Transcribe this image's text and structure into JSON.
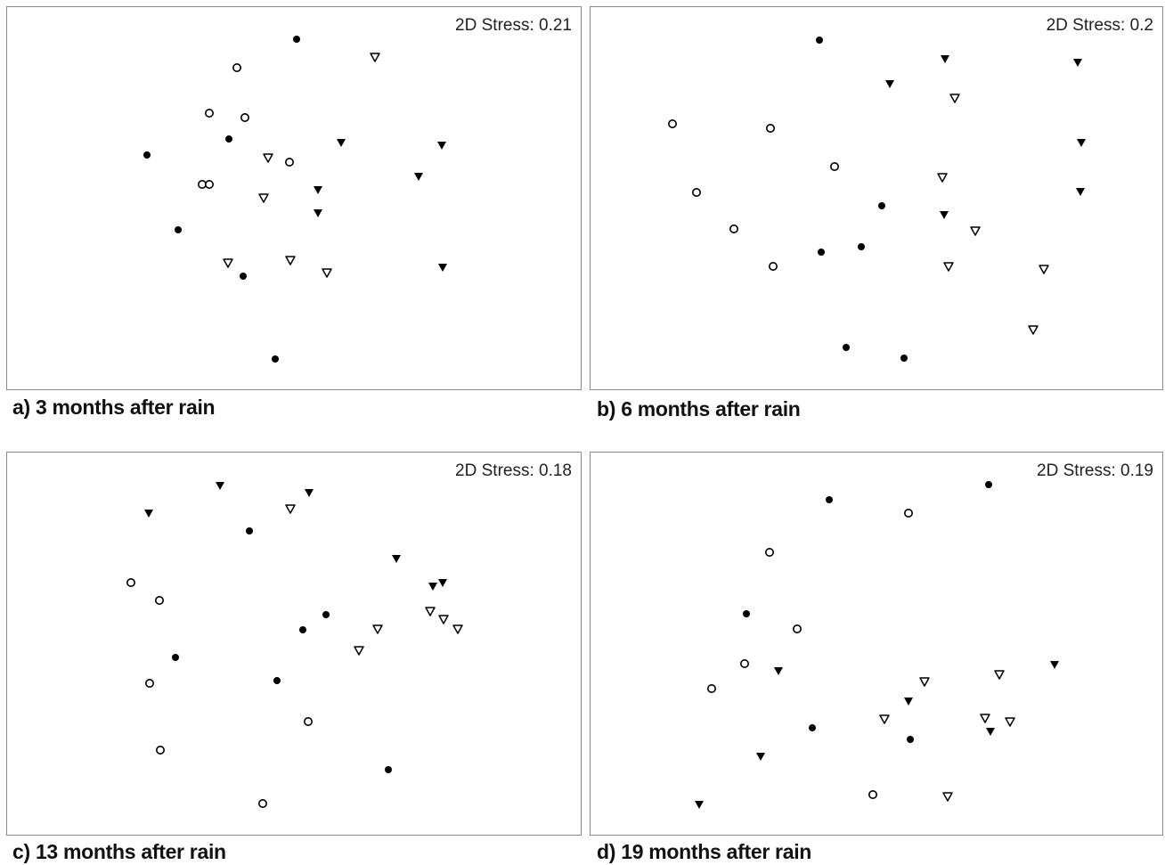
{
  "chart_data": [
    {
      "type": "scatter",
      "caption": "a) 3 months after rain",
      "stress_label": "2D Stress: 0.21",
      "series": [
        {
          "marker": "filled-circle",
          "points": [
            [
              325,
              36
            ],
            [
              249,
              148
            ],
            [
              157,
              166
            ],
            [
              192,
              250
            ],
            [
              265,
              302
            ],
            [
              301,
              395
            ]
          ]
        },
        {
          "marker": "open-circle",
          "points": [
            [
              258,
              68
            ],
            [
              227,
              119
            ],
            [
              267,
              124
            ],
            [
              317,
              174
            ],
            [
              219,
              199
            ],
            [
              227,
              199
            ]
          ]
        },
        {
          "marker": "filled-triangle",
          "points": [
            [
              375,
              152
            ],
            [
              488,
              155
            ],
            [
              349,
              205
            ],
            [
              462,
              190
            ],
            [
              349,
              231
            ],
            [
              489,
              292
            ]
          ]
        },
        {
          "marker": "open-triangle",
          "points": [
            [
              413,
              56
            ],
            [
              293,
              169
            ],
            [
              288,
              214
            ],
            [
              248,
              287
            ],
            [
              318,
              284
            ],
            [
              359,
              298
            ]
          ]
        }
      ]
    },
    {
      "type": "scatter",
      "caption": "b) 6 months after rain",
      "stress_label": "2D Stress: 0.2",
      "series": [
        {
          "marker": "filled-circle",
          "points": [
            [
              257,
              37
            ],
            [
              327,
              223
            ],
            [
              304,
              269
            ],
            [
              259,
              275
            ],
            [
              287,
              382
            ],
            [
              352,
              394
            ]
          ]
        },
        {
          "marker": "open-circle",
          "points": [
            [
              92,
              131
            ],
            [
              202,
              136
            ],
            [
              274,
              179
            ],
            [
              119,
              208
            ],
            [
              161,
              249
            ],
            [
              205,
              291
            ]
          ]
        },
        {
          "marker": "filled-triangle",
          "points": [
            [
              398,
              58
            ],
            [
              547,
              62
            ],
            [
              336,
              86
            ],
            [
              551,
              152
            ],
            [
              397,
              233
            ],
            [
              550,
              207
            ]
          ]
        },
        {
          "marker": "open-triangle",
          "points": [
            [
              409,
              102
            ],
            [
              395,
              191
            ],
            [
              432,
              251
            ],
            [
              402,
              291
            ],
            [
              509,
              294
            ],
            [
              497,
              362
            ]
          ]
        }
      ]
    },
    {
      "type": "scatter",
      "caption": "c) 13 months after rain",
      "stress_label": "2D Stress: 0.18",
      "series": [
        {
          "marker": "filled-circle",
          "points": [
            [
              272,
              88
            ],
            [
              358,
              182
            ],
            [
              332,
              199
            ],
            [
              189,
              230
            ],
            [
              303,
              256
            ],
            [
              428,
              356
            ]
          ]
        },
        {
          "marker": "open-circle",
          "points": [
            [
              139,
              146
            ],
            [
              171,
              166
            ],
            [
              160,
              259
            ],
            [
              172,
              334
            ],
            [
              338,
              302
            ],
            [
              287,
              394
            ]
          ]
        },
        {
          "marker": "filled-triangle",
          "points": [
            [
              239,
              37
            ],
            [
              159,
              68
            ],
            [
              339,
              45
            ],
            [
              437,
              119
            ],
            [
              478,
              150
            ],
            [
              489,
              146
            ]
          ]
        },
        {
          "marker": "open-triangle",
          "points": [
            [
              318,
              63
            ],
            [
              475,
              178
            ],
            [
              490,
              187
            ],
            [
              506,
              198
            ],
            [
              416,
              198
            ],
            [
              395,
              222
            ]
          ]
        }
      ]
    },
    {
      "type": "scatter",
      "caption": "d) 19 months after rain",
      "stress_label": "2D Stress: 0.19",
      "series": [
        {
          "marker": "filled-circle",
          "points": [
            [
              447,
              36
            ],
            [
              268,
              53
            ],
            [
              175,
              181
            ],
            [
              249,
              309
            ],
            [
              359,
              322
            ]
          ]
        },
        {
          "marker": "open-circle",
          "points": [
            [
              357,
              68
            ],
            [
              201,
              112
            ],
            [
              232,
              198
            ],
            [
              173,
              237
            ],
            [
              136,
              265
            ],
            [
              317,
              384
            ]
          ]
        },
        {
          "marker": "filled-triangle",
          "points": [
            [
              521,
              238
            ],
            [
              211,
              245
            ],
            [
              357,
              279
            ],
            [
              449,
              313
            ],
            [
              191,
              341
            ],
            [
              122,
              395
            ]
          ]
        },
        {
          "marker": "open-triangle",
          "points": [
            [
              375,
              257
            ],
            [
              459,
              249
            ],
            [
              330,
              299
            ],
            [
              443,
              298
            ],
            [
              471,
              302
            ],
            [
              401,
              386
            ]
          ]
        }
      ]
    }
  ]
}
